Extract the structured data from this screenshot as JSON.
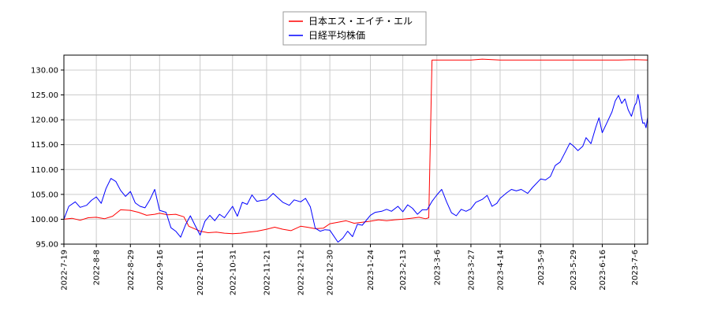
{
  "chart_data": {
    "type": "line",
    "title": "",
    "xlabel": "",
    "ylabel": "",
    "ylim": [
      95,
      133
    ],
    "yticks": [
      "95.00",
      "100.00",
      "105.00",
      "110.00",
      "115.00",
      "120.00",
      "125.00",
      "130.00"
    ],
    "ytick_values": [
      95,
      100,
      105,
      110,
      115,
      120,
      125,
      130
    ],
    "xlim": [
      "2022-07-19",
      "2023-07-14"
    ],
    "xticks": [
      "2022-7-19",
      "2022-8-8",
      "2022-8-29",
      "2022-9-16",
      "2022-10-11",
      "2022-10-31",
      "2022-11-21",
      "2022-12-12",
      "2022-12-30",
      "2023-1-24",
      "2023-2-13",
      "2023-3-6",
      "2023-3-27",
      "2023-4-14",
      "2023-5-9",
      "2023-5-29",
      "2023-6-16",
      "2023-7-6"
    ],
    "xtick_dates": [
      "2022-07-19",
      "2022-08-08",
      "2022-08-29",
      "2022-09-16",
      "2022-10-11",
      "2022-10-31",
      "2022-11-21",
      "2022-12-12",
      "2022-12-30",
      "2023-01-24",
      "2023-02-13",
      "2023-03-06",
      "2023-03-27",
      "2023-04-14",
      "2023-05-09",
      "2023-05-29",
      "2023-06-16",
      "2023-07-06"
    ],
    "grid": true,
    "legend": "top-center",
    "series": [
      {
        "name": "日本エス・エイチ・エル",
        "color": "#ff0000",
        "points": [
          [
            "2022-07-19",
            100.0
          ],
          [
            "2022-07-24",
            100.2
          ],
          [
            "2022-07-29",
            99.8
          ],
          [
            "2022-08-03",
            100.3
          ],
          [
            "2022-08-08",
            100.4
          ],
          [
            "2022-08-13",
            100.1
          ],
          [
            "2022-08-18",
            100.6
          ],
          [
            "2022-08-23",
            101.9
          ],
          [
            "2022-08-29",
            101.8
          ],
          [
            "2022-09-03",
            101.4
          ],
          [
            "2022-09-08",
            100.8
          ],
          [
            "2022-09-13",
            101.0
          ],
          [
            "2022-09-16",
            101.2
          ],
          [
            "2022-09-21",
            100.9
          ],
          [
            "2022-09-26",
            101.0
          ],
          [
            "2022-10-01",
            100.5
          ],
          [
            "2022-10-04",
            98.6
          ],
          [
            "2022-10-11",
            97.6
          ],
          [
            "2022-10-16",
            97.3
          ],
          [
            "2022-10-21",
            97.4
          ],
          [
            "2022-10-26",
            97.2
          ],
          [
            "2022-10-31",
            97.1
          ],
          [
            "2022-11-05",
            97.2
          ],
          [
            "2022-11-10",
            97.4
          ],
          [
            "2022-11-15",
            97.6
          ],
          [
            "2022-11-21",
            98.0
          ],
          [
            "2022-11-26",
            98.4
          ],
          [
            "2022-12-01",
            98.0
          ],
          [
            "2022-12-06",
            97.7
          ],
          [
            "2022-12-12",
            98.6
          ],
          [
            "2022-12-16",
            98.4
          ],
          [
            "2022-12-21",
            98.1
          ],
          [
            "2022-12-26",
            98.2
          ],
          [
            "2022-12-30",
            99.1
          ],
          [
            "2023-01-04",
            99.4
          ],
          [
            "2023-01-09",
            99.7
          ],
          [
            "2023-01-14",
            99.2
          ],
          [
            "2023-01-19",
            99.4
          ],
          [
            "2023-01-24",
            99.6
          ],
          [
            "2023-01-29",
            99.9
          ],
          [
            "2023-02-03",
            99.7
          ],
          [
            "2023-02-08",
            99.9
          ],
          [
            "2023-02-13",
            100.0
          ],
          [
            "2023-02-18",
            100.2
          ],
          [
            "2023-02-23",
            100.4
          ],
          [
            "2023-02-27",
            100.1
          ],
          [
            "2023-03-01",
            100.3
          ],
          [
            "2023-03-03",
            132.0
          ],
          [
            "2023-03-06",
            132.0
          ],
          [
            "2023-03-16",
            132.0
          ],
          [
            "2023-03-27",
            132.0
          ],
          [
            "2023-04-03",
            132.2
          ],
          [
            "2023-04-14",
            132.0
          ],
          [
            "2023-04-24",
            132.0
          ],
          [
            "2023-05-09",
            132.0
          ],
          [
            "2023-05-19",
            132.0
          ],
          [
            "2023-05-29",
            132.0
          ],
          [
            "2023-06-08",
            132.0
          ],
          [
            "2023-06-16",
            132.0
          ],
          [
            "2023-06-26",
            132.0
          ],
          [
            "2023-07-06",
            132.1
          ],
          [
            "2023-07-14",
            132.0
          ]
        ]
      },
      {
        "name": "日経平均株価",
        "color": "#0000ff",
        "points": [
          [
            "2022-07-19",
            100.0
          ],
          [
            "2022-07-22",
            102.6
          ],
          [
            "2022-07-26",
            103.5
          ],
          [
            "2022-07-29",
            102.4
          ],
          [
            "2022-08-02",
            102.8
          ],
          [
            "2022-08-05",
            103.8
          ],
          [
            "2022-08-08",
            104.5
          ],
          [
            "2022-08-11",
            103.2
          ],
          [
            "2022-08-14",
            106.2
          ],
          [
            "2022-08-17",
            108.2
          ],
          [
            "2022-08-20",
            107.6
          ],
          [
            "2022-08-23",
            105.8
          ],
          [
            "2022-08-26",
            104.6
          ],
          [
            "2022-08-29",
            105.6
          ],
          [
            "2022-09-01",
            103.3
          ],
          [
            "2022-09-04",
            102.6
          ],
          [
            "2022-09-07",
            102.3
          ],
          [
            "2022-09-10",
            103.9
          ],
          [
            "2022-09-13",
            106.0
          ],
          [
            "2022-09-16",
            101.8
          ],
          [
            "2022-09-20",
            101.4
          ],
          [
            "2022-09-23",
            98.3
          ],
          [
            "2022-09-26",
            97.6
          ],
          [
            "2022-09-29",
            96.4
          ],
          [
            "2022-10-02",
            98.9
          ],
          [
            "2022-10-05",
            100.7
          ],
          [
            "2022-10-08",
            98.7
          ],
          [
            "2022-10-11",
            96.8
          ],
          [
            "2022-10-14",
            99.6
          ],
          [
            "2022-10-17",
            100.8
          ],
          [
            "2022-10-20",
            99.7
          ],
          [
            "2022-10-23",
            101.0
          ],
          [
            "2022-10-26",
            100.3
          ],
          [
            "2022-10-31",
            102.6
          ],
          [
            "2022-11-03",
            100.6
          ],
          [
            "2022-11-06",
            103.4
          ],
          [
            "2022-11-09",
            103.0
          ],
          [
            "2022-11-12",
            104.9
          ],
          [
            "2022-11-15",
            103.6
          ],
          [
            "2022-11-18",
            103.8
          ],
          [
            "2022-11-21",
            103.9
          ],
          [
            "2022-11-25",
            105.2
          ],
          [
            "2022-11-28",
            104.3
          ],
          [
            "2022-12-01",
            103.4
          ],
          [
            "2022-12-05",
            102.8
          ],
          [
            "2022-12-08",
            103.9
          ],
          [
            "2022-12-12",
            103.5
          ],
          [
            "2022-12-15",
            104.2
          ],
          [
            "2022-12-18",
            102.5
          ],
          [
            "2022-12-21",
            98.2
          ],
          [
            "2022-12-24",
            97.6
          ],
          [
            "2022-12-27",
            97.9
          ],
          [
            "2022-12-30",
            97.8
          ],
          [
            "2023-01-04",
            95.4
          ],
          [
            "2023-01-07",
            96.2
          ],
          [
            "2023-01-10",
            97.6
          ],
          [
            "2023-01-13",
            96.5
          ],
          [
            "2023-01-16",
            99.0
          ],
          [
            "2023-01-19",
            98.8
          ],
          [
            "2023-01-24",
            100.8
          ],
          [
            "2023-01-27",
            101.4
          ],
          [
            "2023-01-31",
            101.6
          ],
          [
            "2023-02-03",
            102.0
          ],
          [
            "2023-02-06",
            101.6
          ],
          [
            "2023-02-10",
            102.6
          ],
          [
            "2023-02-13",
            101.5
          ],
          [
            "2023-02-16",
            102.9
          ],
          [
            "2023-02-19",
            102.2
          ],
          [
            "2023-02-22",
            101.0
          ],
          [
            "2023-02-25",
            101.9
          ],
          [
            "2023-02-28",
            101.9
          ],
          [
            "2023-03-03",
            103.6
          ],
          [
            "2023-03-06",
            104.9
          ],
          [
            "2023-03-09",
            106.0
          ],
          [
            "2023-03-12",
            103.5
          ],
          [
            "2023-03-15",
            101.3
          ],
          [
            "2023-03-18",
            100.7
          ],
          [
            "2023-03-21",
            102.0
          ],
          [
            "2023-03-24",
            101.6
          ],
          [
            "2023-03-27",
            102.1
          ],
          [
            "2023-03-30",
            103.4
          ],
          [
            "2023-04-03",
            104.0
          ],
          [
            "2023-04-06",
            104.8
          ],
          [
            "2023-04-09",
            102.6
          ],
          [
            "2023-04-12",
            103.2
          ],
          [
            "2023-04-14",
            104.2
          ],
          [
            "2023-04-18",
            105.3
          ],
          [
            "2023-04-21",
            106.0
          ],
          [
            "2023-04-24",
            105.7
          ],
          [
            "2023-04-27",
            106.0
          ],
          [
            "2023-05-01",
            105.2
          ],
          [
            "2023-05-04",
            106.4
          ],
          [
            "2023-05-09",
            108.1
          ],
          [
            "2023-05-12",
            107.9
          ],
          [
            "2023-05-15",
            108.6
          ],
          [
            "2023-05-18",
            110.8
          ],
          [
            "2023-05-21",
            111.5
          ],
          [
            "2023-05-24",
            113.4
          ],
          [
            "2023-05-27",
            115.3
          ],
          [
            "2023-05-29",
            114.8
          ],
          [
            "2023-06-01",
            113.8
          ],
          [
            "2023-06-04",
            114.7
          ],
          [
            "2023-06-06",
            116.4
          ],
          [
            "2023-06-09",
            115.2
          ],
          [
            "2023-06-12",
            118.5
          ],
          [
            "2023-06-14",
            120.4
          ],
          [
            "2023-06-16",
            117.4
          ],
          [
            "2023-06-19",
            119.5
          ],
          [
            "2023-06-22",
            121.6
          ],
          [
            "2023-06-24",
            123.8
          ],
          [
            "2023-06-26",
            124.9
          ],
          [
            "2023-06-28",
            123.3
          ],
          [
            "2023-06-30",
            124.2
          ],
          [
            "2023-07-02",
            122.0
          ],
          [
            "2023-07-04",
            120.7
          ],
          [
            "2023-07-06",
            122.9
          ],
          [
            "2023-07-07",
            123.4
          ],
          [
            "2023-07-08",
            125.1
          ],
          [
            "2023-07-09",
            123.5
          ],
          [
            "2023-07-10",
            120.9
          ],
          [
            "2023-07-11",
            119.3
          ],
          [
            "2023-07-12",
            119.4
          ],
          [
            "2023-07-13",
            118.4
          ],
          [
            "2023-07-14",
            120.5
          ]
        ]
      }
    ]
  }
}
